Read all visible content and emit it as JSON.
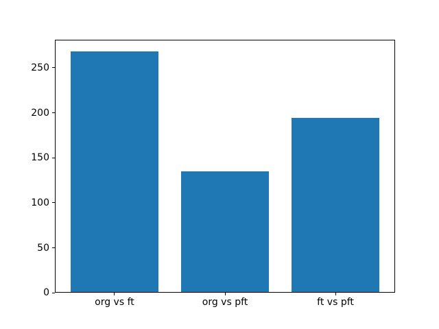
{
  "chart_data": {
    "type": "bar",
    "title": "",
    "xlabel": "",
    "ylabel": "",
    "categories": [
      "org vs ft",
      "org vs pft",
      "ft vs pft"
    ],
    "values": [
      268,
      135,
      194
    ],
    "yticks": [
      0,
      50,
      100,
      150,
      200,
      250
    ],
    "ylim": [
      0,
      281.4
    ],
    "bar_color": "#1f77b4",
    "grid": false,
    "legend": false,
    "background_color": "#ffffff",
    "axis_color": "#000000"
  }
}
